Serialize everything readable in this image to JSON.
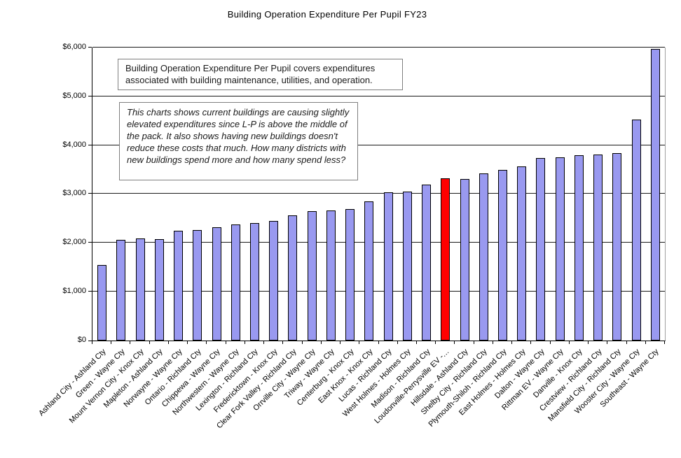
{
  "chart_data": {
    "type": "bar",
    "title": "Building Operation Expenditure Per Pupil FY23",
    "xlabel": "",
    "ylabel": "",
    "ylim": [
      0,
      6000
    ],
    "ytick_step": 1000,
    "ytick_labels": [
      "$0",
      "$1,000",
      "$2,000",
      "$3,000",
      "$4,000",
      "$5,000",
      "$6,000"
    ],
    "grid": true,
    "legend": false,
    "categories": [
      "Ashland City - Ashland Cty",
      "Green - Wayne Cty",
      "Mount Vernon City - Knox Cty",
      "Mapleton - Ashland Cty",
      "Norwayne - Wayne Cty",
      "Ontario - Richland Cty",
      "Chippewa - Wayne Cty",
      "Northwestern - Wayne Cty",
      "Lexington - Richland Cty",
      "Fredericktown - Knox Cty",
      "Clear Fork Valley - Richland Cty",
      "Orrville City - Wayne Cty",
      "Triway - Wayne Cty",
      "Centerburg - Knox Cty",
      "East Knox - Knox Cty",
      "Lucas - Richland Cty",
      "West Holmes - Holmes Cty",
      "Madison - Richland Cty",
      "Loudonville-Perrysville EV -…",
      "Hillsdale - Ashland Cty",
      "Shelby City - Richland Cty",
      "Plymouth-Shiloh - Richland Cty",
      "East Holmes - Holmes Cty",
      "Dalton - Wayne Cty",
      "Rittman EV - Wayne Cty",
      "Danville - Knox Cty",
      "Crestview - Richland Cty",
      "Mansfield City - Richland Cty",
      "Wooster City - Wayne Cty",
      "Southeast - Wayne Cty"
    ],
    "values": [
      1550,
      2065,
      2085,
      2080,
      2245,
      2265,
      2320,
      2375,
      2405,
      2450,
      2560,
      2655,
      2670,
      2690,
      2850,
      3035,
      3045,
      3190,
      3320,
      3310,
      3420,
      3500,
      3570,
      3740,
      3755,
      3790,
      3805,
      3840,
      4525,
      5965
    ],
    "highlight_index": 18,
    "highlight_category": "Loudonville-Perrysville EV -…",
    "bar_color": "#9999F0",
    "highlight_color": "#FF0000",
    "bar_border_color": "#000000"
  },
  "annotations": [
    {
      "text": "Building Operation Expenditure Per Pupil covers expenditures associated with building maintenance, utilities, and operation.",
      "style": "normal"
    },
    {
      "text": "This charts shows current buildings are causing slightly elevated expenditures since L-P is above the middle of the pack. It also shows having new buildings doesn't reduce these costs that much. How many districts with new buildings spend more and how many spend less?",
      "style": "italic"
    }
  ]
}
